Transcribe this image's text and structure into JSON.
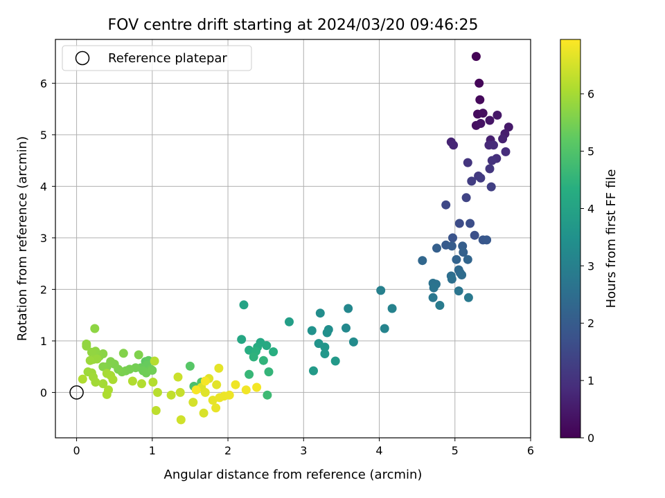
{
  "chart_data": {
    "type": "scatter",
    "title": "FOV centre drift starting at 2024/03/20 09:46:25",
    "xlabel": "Angular distance from reference (arcmin)",
    "ylabel": "Rotation from reference (arcmin)",
    "xlim": [
      -0.28,
      6.0
    ],
    "ylim": [
      -0.88,
      6.85
    ],
    "xticks": [
      0,
      1,
      2,
      3,
      4,
      5,
      6
    ],
    "yticks": [
      0,
      1,
      2,
      3,
      4,
      5,
      6
    ],
    "grid": true,
    "legend": {
      "placement": "upper-left",
      "entries": [
        {
          "label": "Reference platepar",
          "marker": "open-circle"
        }
      ]
    },
    "reference_point": {
      "x": 0,
      "y": 0
    },
    "colorbar": {
      "label": "Hours from first FF file",
      "colormap": "viridis",
      "range": [
        0,
        6.95
      ],
      "ticks": [
        0,
        1,
        2,
        3,
        4,
        5,
        6
      ]
    },
    "points": [
      {
        "x": 5.28,
        "y": 6.52,
        "c": 0.05
      },
      {
        "x": 5.32,
        "y": 6.0,
        "c": 0.1
      },
      {
        "x": 5.33,
        "y": 5.68,
        "c": 0.15
      },
      {
        "x": 5.3,
        "y": 5.4,
        "c": 0.2
      },
      {
        "x": 5.37,
        "y": 5.42,
        "c": 0.25
      },
      {
        "x": 5.28,
        "y": 5.18,
        "c": 0.3
      },
      {
        "x": 5.34,
        "y": 5.22,
        "c": 0.35
      },
      {
        "x": 5.46,
        "y": 5.28,
        "c": 0.4
      },
      {
        "x": 5.56,
        "y": 5.38,
        "c": 0.45
      },
      {
        "x": 5.71,
        "y": 5.15,
        "c": 0.5
      },
      {
        "x": 5.66,
        "y": 5.02,
        "c": 0.55
      },
      {
        "x": 5.47,
        "y": 4.9,
        "c": 0.6
      },
      {
        "x": 5.63,
        "y": 4.92,
        "c": 0.65
      },
      {
        "x": 4.95,
        "y": 4.86,
        "c": 0.7
      },
      {
        "x": 4.98,
        "y": 4.8,
        "c": 0.75
      },
      {
        "x": 5.45,
        "y": 4.8,
        "c": 0.8
      },
      {
        "x": 5.51,
        "y": 4.8,
        "c": 0.85
      },
      {
        "x": 5.67,
        "y": 4.67,
        "c": 0.9
      },
      {
        "x": 5.55,
        "y": 4.54,
        "c": 0.95
      },
      {
        "x": 5.49,
        "y": 4.5,
        "c": 1.0
      },
      {
        "x": 5.17,
        "y": 4.46,
        "c": 1.05
      },
      {
        "x": 5.46,
        "y": 4.34,
        "c": 1.1
      },
      {
        "x": 5.31,
        "y": 4.2,
        "c": 1.15
      },
      {
        "x": 5.34,
        "y": 4.16,
        "c": 1.2
      },
      {
        "x": 5.22,
        "y": 4.1,
        "c": 1.25
      },
      {
        "x": 5.48,
        "y": 3.99,
        "c": 1.3
      },
      {
        "x": 5.15,
        "y": 3.78,
        "c": 1.4
      },
      {
        "x": 4.88,
        "y": 3.64,
        "c": 1.5
      },
      {
        "x": 5.06,
        "y": 3.28,
        "c": 1.6
      },
      {
        "x": 5.2,
        "y": 3.28,
        "c": 1.65
      },
      {
        "x": 5.26,
        "y": 3.05,
        "c": 1.7
      },
      {
        "x": 4.97,
        "y": 3.0,
        "c": 1.8
      },
      {
        "x": 5.37,
        "y": 2.96,
        "c": 1.85
      },
      {
        "x": 5.42,
        "y": 2.96,
        "c": 1.9
      },
      {
        "x": 4.88,
        "y": 2.86,
        "c": 1.95
      },
      {
        "x": 4.96,
        "y": 2.84,
        "c": 2.0
      },
      {
        "x": 5.1,
        "y": 2.84,
        "c": 2.05
      },
      {
        "x": 4.76,
        "y": 2.8,
        "c": 2.1
      },
      {
        "x": 5.11,
        "y": 2.72,
        "c": 2.15
      },
      {
        "x": 5.02,
        "y": 2.58,
        "c": 2.2
      },
      {
        "x": 5.17,
        "y": 2.58,
        "c": 2.25
      },
      {
        "x": 4.57,
        "y": 2.56,
        "c": 2.3
      },
      {
        "x": 5.05,
        "y": 2.38,
        "c": 2.35
      },
      {
        "x": 5.07,
        "y": 2.32,
        "c": 2.4
      },
      {
        "x": 5.09,
        "y": 2.28,
        "c": 2.45
      },
      {
        "x": 4.95,
        "y": 2.26,
        "c": 2.5
      },
      {
        "x": 4.96,
        "y": 2.2,
        "c": 2.55
      },
      {
        "x": 4.71,
        "y": 2.12,
        "c": 2.6
      },
      {
        "x": 4.75,
        "y": 2.1,
        "c": 2.62
      },
      {
        "x": 4.72,
        "y": 2.03,
        "c": 2.65
      },
      {
        "x": 5.05,
        "y": 1.97,
        "c": 2.7
      },
      {
        "x": 4.71,
        "y": 1.84,
        "c": 2.75
      },
      {
        "x": 5.18,
        "y": 1.84,
        "c": 2.8
      },
      {
        "x": 4.8,
        "y": 1.69,
        "c": 2.85
      },
      {
        "x": 4.02,
        "y": 1.98,
        "c": 3.0
      },
      {
        "x": 4.17,
        "y": 1.63,
        "c": 3.05
      },
      {
        "x": 4.07,
        "y": 1.24,
        "c": 3.1
      },
      {
        "x": 3.59,
        "y": 1.63,
        "c": 3.2
      },
      {
        "x": 3.56,
        "y": 1.25,
        "c": 3.25
      },
      {
        "x": 3.66,
        "y": 0.98,
        "c": 3.3
      },
      {
        "x": 3.22,
        "y": 1.54,
        "c": 3.35
      },
      {
        "x": 3.33,
        "y": 1.22,
        "c": 3.4
      },
      {
        "x": 3.31,
        "y": 1.16,
        "c": 3.45
      },
      {
        "x": 3.11,
        "y": 1.2,
        "c": 3.5
      },
      {
        "x": 3.2,
        "y": 0.95,
        "c": 3.55
      },
      {
        "x": 3.28,
        "y": 0.88,
        "c": 3.6
      },
      {
        "x": 3.28,
        "y": 0.75,
        "c": 3.65
      },
      {
        "x": 3.42,
        "y": 0.61,
        "c": 3.7
      },
      {
        "x": 3.13,
        "y": 0.42,
        "c": 3.75
      },
      {
        "x": 2.81,
        "y": 1.37,
        "c": 3.85
      },
      {
        "x": 2.21,
        "y": 1.7,
        "c": 4.0
      },
      {
        "x": 2.18,
        "y": 1.03,
        "c": 4.1
      },
      {
        "x": 2.43,
        "y": 0.97,
        "c": 4.15
      },
      {
        "x": 2.51,
        "y": 0.91,
        "c": 4.2
      },
      {
        "x": 2.39,
        "y": 0.88,
        "c": 4.25
      },
      {
        "x": 2.28,
        "y": 0.82,
        "c": 4.3
      },
      {
        "x": 2.6,
        "y": 0.79,
        "c": 4.35
      },
      {
        "x": 2.37,
        "y": 0.8,
        "c": 4.4
      },
      {
        "x": 2.34,
        "y": 0.69,
        "c": 4.45
      },
      {
        "x": 2.47,
        "y": 0.62,
        "c": 4.5
      },
      {
        "x": 2.54,
        "y": 0.4,
        "c": 4.55
      },
      {
        "x": 2.28,
        "y": 0.35,
        "c": 4.6
      },
      {
        "x": 2.52,
        "y": -0.05,
        "c": 4.7
      },
      {
        "x": 1.55,
        "y": 0.12,
        "c": 4.9
      },
      {
        "x": 1.65,
        "y": 0.2,
        "c": 5.0
      },
      {
        "x": 1.5,
        "y": 0.51,
        "c": 5.1
      },
      {
        "x": 0.91,
        "y": 0.6,
        "c": 5.2
      },
      {
        "x": 0.95,
        "y": 0.62,
        "c": 5.25
      },
      {
        "x": 0.93,
        "y": 0.53,
        "c": 5.3
      },
      {
        "x": 0.85,
        "y": 0.48,
        "c": 5.32
      },
      {
        "x": 0.98,
        "y": 0.45,
        "c": 5.35
      },
      {
        "x": 0.88,
        "y": 0.42,
        "c": 5.38
      },
      {
        "x": 0.92,
        "y": 0.38,
        "c": 5.4
      },
      {
        "x": 1.0,
        "y": 0.43,
        "c": 5.42
      },
      {
        "x": 0.78,
        "y": 0.48,
        "c": 5.45
      },
      {
        "x": 0.7,
        "y": 0.45,
        "c": 5.48
      },
      {
        "x": 0.65,
        "y": 0.42,
        "c": 5.5
      },
      {
        "x": 0.6,
        "y": 0.4,
        "c": 5.52
      },
      {
        "x": 0.55,
        "y": 0.45,
        "c": 5.55
      },
      {
        "x": 0.5,
        "y": 0.55,
        "c": 5.58
      },
      {
        "x": 0.45,
        "y": 0.6,
        "c": 5.6
      },
      {
        "x": 0.4,
        "y": 0.5,
        "c": 5.62
      },
      {
        "x": 0.35,
        "y": 0.5,
        "c": 5.65
      },
      {
        "x": 0.3,
        "y": 0.7,
        "c": 5.68
      },
      {
        "x": 0.35,
        "y": 0.75,
        "c": 5.7
      },
      {
        "x": 0.28,
        "y": 0.73,
        "c": 5.72
      },
      {
        "x": 0.25,
        "y": 0.8,
        "c": 5.75
      },
      {
        "x": 0.2,
        "y": 0.78,
        "c": 5.78
      },
      {
        "x": 0.13,
        "y": 0.9,
        "c": 5.8
      },
      {
        "x": 0.22,
        "y": 0.64,
        "c": 5.82
      },
      {
        "x": 0.27,
        "y": 0.65,
        "c": 5.85
      },
      {
        "x": 0.18,
        "y": 0.62,
        "c": 5.88
      },
      {
        "x": 0.15,
        "y": 0.4,
        "c": 5.9
      },
      {
        "x": 0.2,
        "y": 0.38,
        "c": 5.92
      },
      {
        "x": 0.22,
        "y": 0.3,
        "c": 5.94
      },
      {
        "x": 0.25,
        "y": 0.2,
        "c": 5.96
      },
      {
        "x": 0.35,
        "y": 0.17,
        "c": 5.98
      },
      {
        "x": 0.4,
        "y": 0.37,
        "c": 6.0
      },
      {
        "x": 0.45,
        "y": 0.33,
        "c": 6.02
      },
      {
        "x": 0.48,
        "y": 0.25,
        "c": 6.04
      },
      {
        "x": 0.42,
        "y": 0.05,
        "c": 6.06
      },
      {
        "x": 0.4,
        "y": -0.04,
        "c": 6.08
      },
      {
        "x": 0.08,
        "y": 0.26,
        "c": 6.1
      },
      {
        "x": 0.13,
        "y": 0.94,
        "c": 5.78
      },
      {
        "x": 0.24,
        "y": 1.24,
        "c": 5.74
      },
      {
        "x": 0.62,
        "y": 0.76,
        "c": 5.62
      },
      {
        "x": 0.82,
        "y": 0.73,
        "c": 5.58
      },
      {
        "x": 0.74,
        "y": 0.22,
        "c": 6.12
      },
      {
        "x": 0.86,
        "y": 0.17,
        "c": 6.14
      },
      {
        "x": 1.01,
        "y": 0.2,
        "c": 6.16
      },
      {
        "x": 1.03,
        "y": 0.61,
        "c": 6.18
      },
      {
        "x": 1.07,
        "y": 0.0,
        "c": 6.2
      },
      {
        "x": 1.05,
        "y": -0.35,
        "c": 6.25
      },
      {
        "x": 1.25,
        "y": -0.05,
        "c": 6.3
      },
      {
        "x": 1.37,
        "y": 0.0,
        "c": 6.35
      },
      {
        "x": 1.34,
        "y": 0.3,
        "c": 6.4
      },
      {
        "x": 1.38,
        "y": -0.53,
        "c": 6.45
      },
      {
        "x": 1.54,
        "y": -0.19,
        "c": 6.5
      },
      {
        "x": 1.68,
        "y": -0.4,
        "c": 6.55
      },
      {
        "x": 1.65,
        "y": 0.1,
        "c": 6.6
      },
      {
        "x": 1.7,
        "y": 0.0,
        "c": 6.62
      },
      {
        "x": 1.75,
        "y": 0.27,
        "c": 6.64
      },
      {
        "x": 1.85,
        "y": 0.15,
        "c": 6.66
      },
      {
        "x": 1.88,
        "y": 0.47,
        "c": 6.68
      },
      {
        "x": 1.8,
        "y": -0.15,
        "c": 6.7
      },
      {
        "x": 1.84,
        "y": -0.3,
        "c": 6.72
      },
      {
        "x": 1.89,
        "y": -0.1,
        "c": 6.74
      },
      {
        "x": 1.95,
        "y": -0.07,
        "c": 6.76
      },
      {
        "x": 2.02,
        "y": -0.05,
        "c": 6.78
      },
      {
        "x": 2.1,
        "y": 0.15,
        "c": 6.8
      },
      {
        "x": 2.24,
        "y": 0.05,
        "c": 6.82
      },
      {
        "x": 2.38,
        "y": 0.1,
        "c": 6.84
      },
      {
        "x": 1.7,
        "y": 0.22,
        "c": 6.86
      },
      {
        "x": 1.58,
        "y": 0.05,
        "c": 6.88
      }
    ]
  }
}
